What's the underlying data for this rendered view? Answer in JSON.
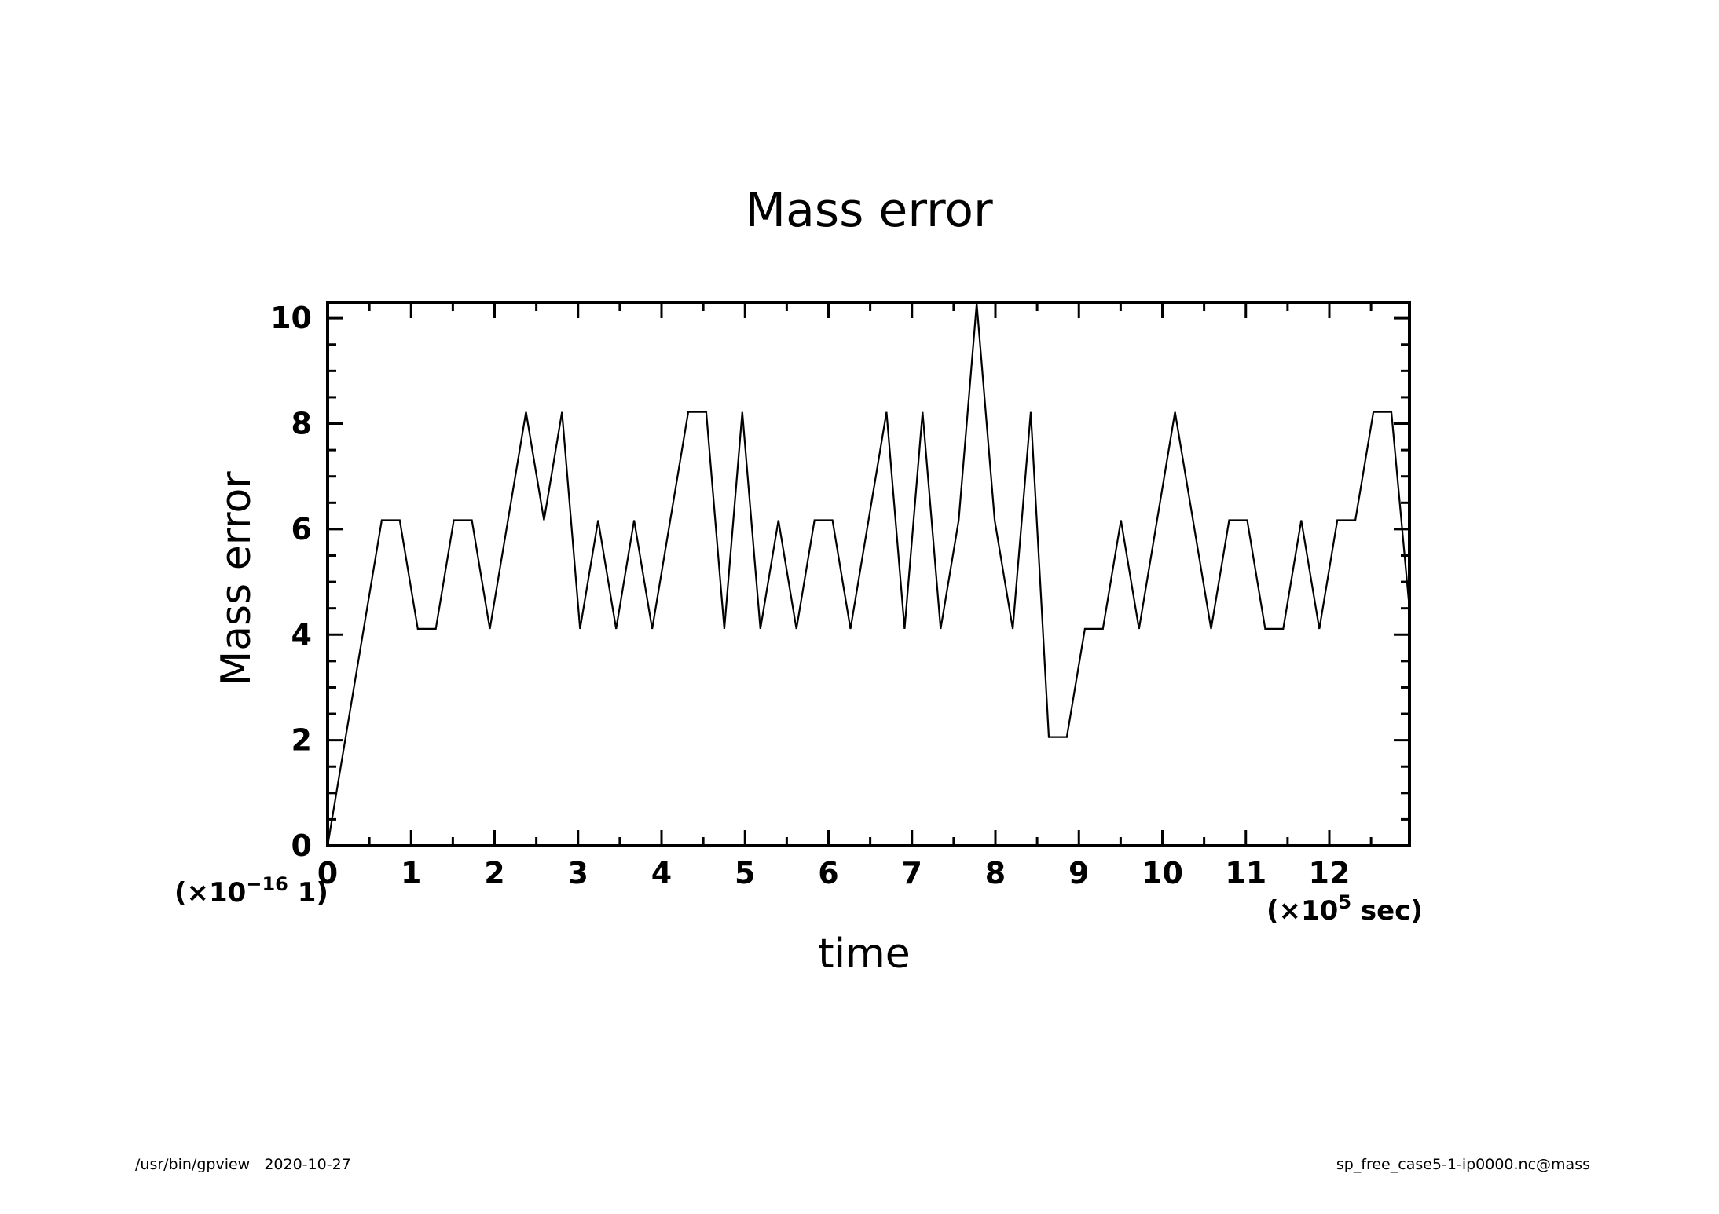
{
  "footer": {
    "left": "/usr/bin/gpview   2020-10-27",
    "right": "sp_free_case5-1-ip0000.nc@mass"
  },
  "colors": {
    "line": "#000000",
    "background": "#ffffff"
  },
  "chart_data": {
    "type": "line",
    "title": "Mass error",
    "xlabel": "time",
    "ylabel": "Mass error",
    "x_scale": {
      "prefix": "(×10",
      "exp": "5",
      "suffix": " sec)"
    },
    "y_scale": {
      "prefix": "(×10",
      "exp": "−16",
      "suffix": " 1)"
    },
    "xlim": [
      0,
      12.96
    ],
    "ylim": [
      0,
      10.3
    ],
    "x_ticks": [
      0,
      1,
      2,
      3,
      4,
      5,
      6,
      7,
      8,
      9,
      10,
      11,
      12
    ],
    "x_tick_labels": [
      "0",
      "1",
      "2",
      "3",
      "4",
      "5",
      "6",
      "7",
      "8",
      "9",
      "10",
      "11",
      "12"
    ],
    "y_ticks": [
      0,
      2,
      4,
      6,
      8,
      10
    ],
    "y_tick_labels": [
      "0",
      "2",
      "4",
      "6",
      "8",
      "10"
    ],
    "grid": false,
    "legend": "none",
    "series": [
      {
        "x": [
          0,
          0.648,
          0.864,
          1.08,
          1.296,
          1.512,
          1.728,
          1.944,
          2.376,
          2.592,
          2.808,
          3.024,
          3.24,
          3.456,
          3.672,
          3.888,
          4.32,
          4.536,
          4.752,
          4.968,
          5.184,
          5.4,
          5.616,
          5.832,
          6.048,
          6.264,
          6.696,
          6.912,
          7.128,
          7.344,
          7.56,
          7.776,
          7.992,
          8.208,
          8.424,
          8.64,
          8.856,
          9.072,
          9.288,
          9.504,
          9.72,
          10.152,
          10.584,
          10.8,
          11.016,
          11.232,
          11.448,
          11.664,
          11.88,
          12.096,
          12.312,
          12.528,
          12.744,
          12.96
        ],
        "y": [
          0,
          6.17,
          6.17,
          4.11,
          4.11,
          6.17,
          6.17,
          4.11,
          8.22,
          6.17,
          8.22,
          4.11,
          6.17,
          4.11,
          6.17,
          4.11,
          8.22,
          8.22,
          4.11,
          8.22,
          4.11,
          6.17,
          4.11,
          6.17,
          6.17,
          4.11,
          8.22,
          4.11,
          8.22,
          4.11,
          6.17,
          10.28,
          6.17,
          4.11,
          8.22,
          2.06,
          2.06,
          4.11,
          4.11,
          6.17,
          4.11,
          8.22,
          4.11,
          6.17,
          6.17,
          4.11,
          4.11,
          6.17,
          4.11,
          6.17,
          6.17,
          8.22,
          8.22,
          4.5
        ]
      }
    ]
  }
}
